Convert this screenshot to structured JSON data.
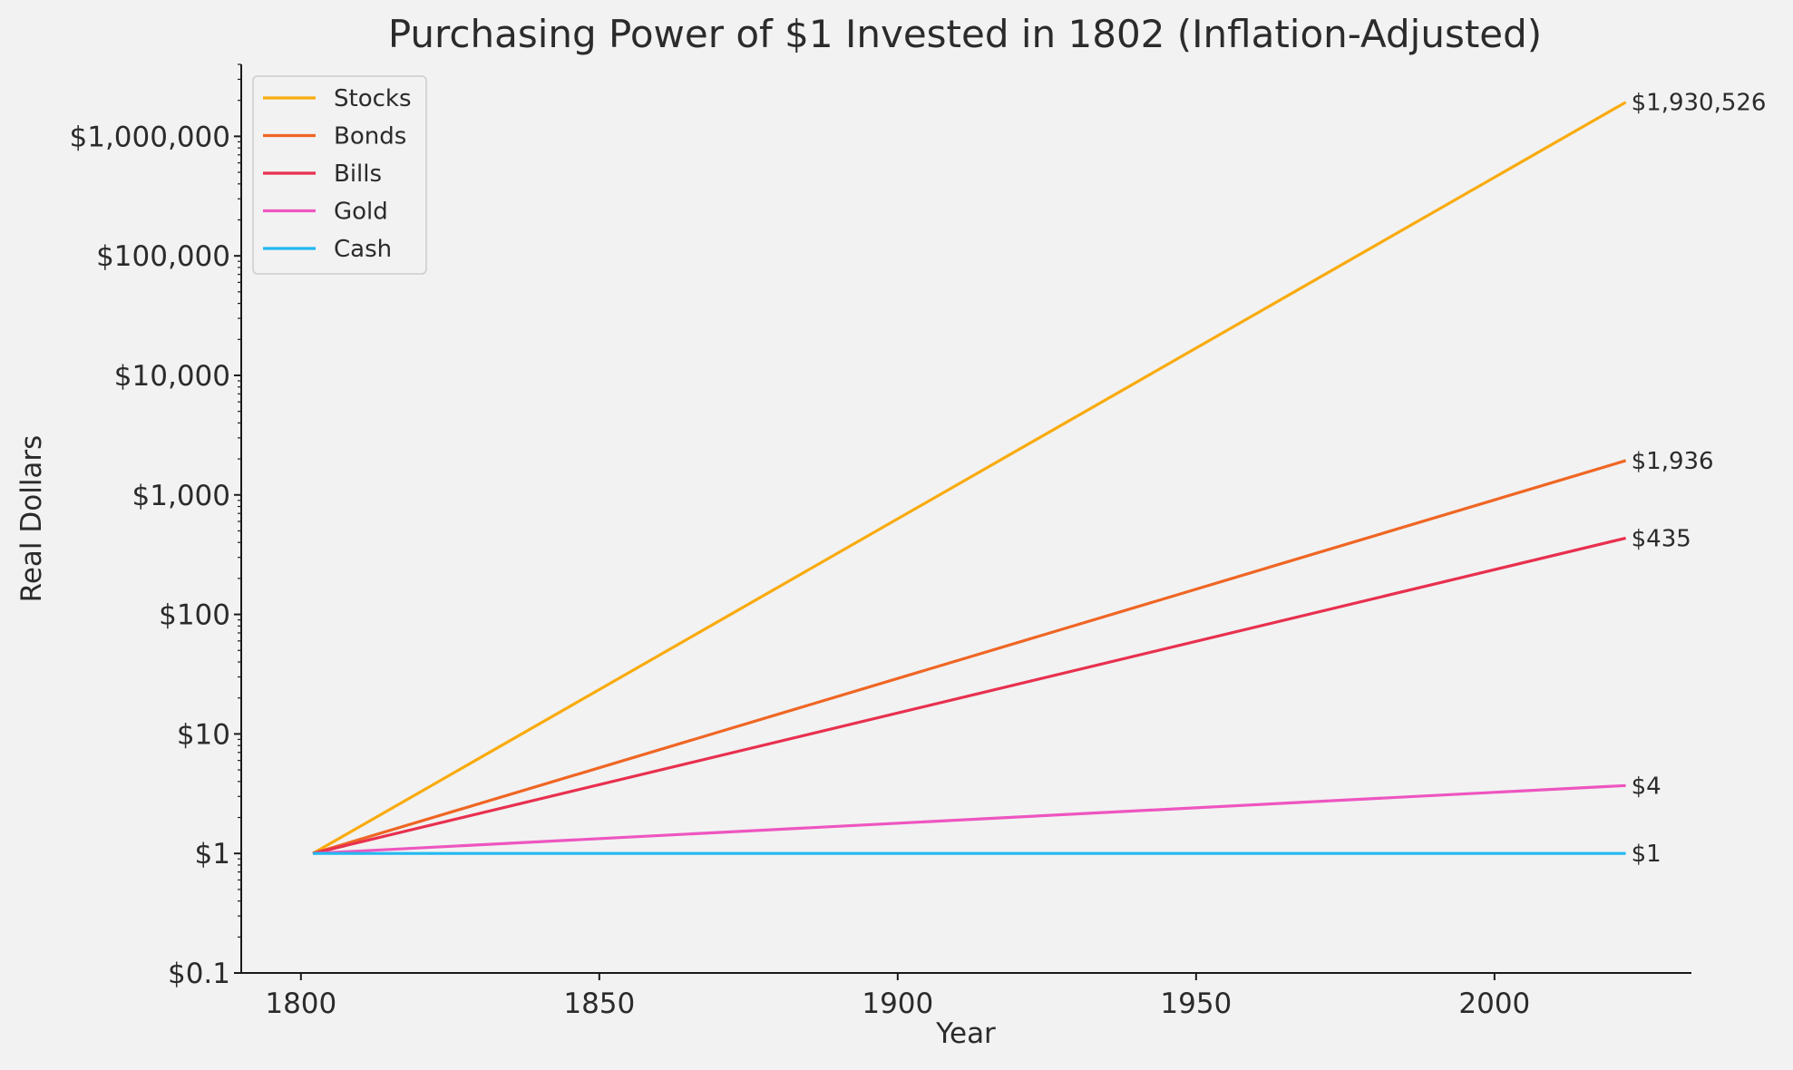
{
  "chart_data": {
    "type": "line",
    "title": "Purchasing Power of $1 Invested in 1802 (Inflation-Adjusted)",
    "xlabel": "Year",
    "ylabel": "Real Dollars",
    "yscale": "log",
    "xlim": [
      1790,
      2033
    ],
    "ylim": [
      0.1,
      4000000
    ],
    "xticks": [
      1800,
      1850,
      1900,
      1950,
      2000
    ],
    "xtick_labels": [
      "1800",
      "1850",
      "1900",
      "1950",
      "2000"
    ],
    "yticks": [
      0.1,
      1,
      10,
      100,
      1000,
      10000,
      100000,
      1000000
    ],
    "ytick_labels": [
      "$0.1",
      "$1",
      "$10",
      "$100",
      "$1,000",
      "$10,000",
      "$100,000",
      "$1,000,000"
    ],
    "legend_position": "top-left",
    "series": [
      {
        "name": "Stocks",
        "color": "#f9ab0e",
        "x": [
          1802,
          2022
        ],
        "values": [
          1,
          1930526
        ],
        "end_label": "$1,930,526"
      },
      {
        "name": "Bonds",
        "color": "#ef6624",
        "x": [
          1802,
          2022
        ],
        "values": [
          1,
          1936
        ],
        "end_label": "$1,936"
      },
      {
        "name": "Bills",
        "color": "#e8304f",
        "x": [
          1802,
          2022
        ],
        "values": [
          1,
          435
        ],
        "end_label": "$435"
      },
      {
        "name": "Gold",
        "color": "#ee55c0",
        "x": [
          1802,
          2022
        ],
        "values": [
          1,
          3.7
        ],
        "end_label": "$4"
      },
      {
        "name": "Cash",
        "color": "#22b9f0",
        "x": [
          1802,
          2022
        ],
        "values": [
          1,
          1
        ],
        "end_label": "$1"
      }
    ]
  }
}
